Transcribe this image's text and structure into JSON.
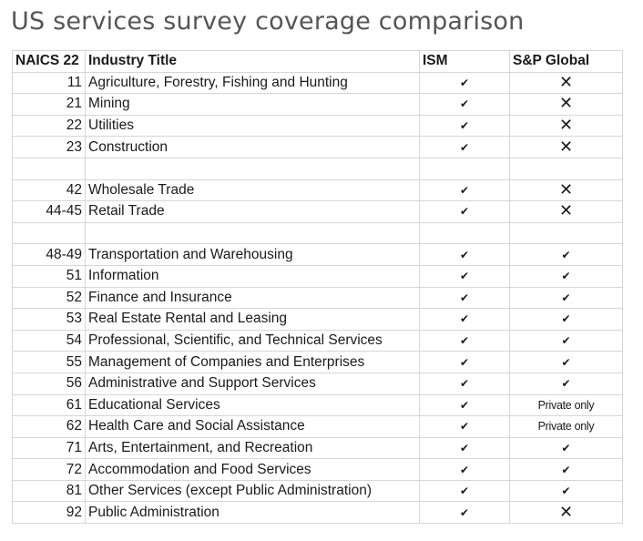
{
  "title": "US services survey coverage comparison",
  "headers": {
    "naics": "NAICS 22",
    "industry": "Industry Title",
    "ism": "ISM",
    "sp": "S&P Global"
  },
  "marks": {
    "check": "✔",
    "cross": "✕"
  },
  "rows": [
    {
      "code": "11",
      "title": "Agriculture, Forestry, Fishing and Hunting",
      "ism": "check",
      "sp": "cross"
    },
    {
      "code": "21",
      "title": "Mining",
      "ism": "check",
      "sp": "cross"
    },
    {
      "code": "22",
      "title": "Utilities",
      "ism": "check",
      "sp": "cross"
    },
    {
      "code": "23",
      "title": "Construction",
      "ism": "check",
      "sp": "cross"
    },
    {
      "code": "",
      "title": "",
      "ism": "",
      "sp": ""
    },
    {
      "code": "42",
      "title": "Wholesale Trade",
      "ism": "check",
      "sp": "cross"
    },
    {
      "code": "44-45",
      "title": "Retail Trade",
      "ism": "check",
      "sp": "cross"
    },
    {
      "code": "",
      "title": "",
      "ism": "",
      "sp": ""
    },
    {
      "code": "48-49",
      "title": "Transportation and Warehousing",
      "ism": "check",
      "sp": "check"
    },
    {
      "code": "51",
      "title": "Information",
      "ism": "check",
      "sp": "check"
    },
    {
      "code": "52",
      "title": "Finance and Insurance",
      "ism": "check",
      "sp": "check"
    },
    {
      "code": "53",
      "title": "Real Estate Rental and Leasing",
      "ism": "check",
      "sp": "check"
    },
    {
      "code": "54",
      "title": "Professional, Scientific, and Technical Services",
      "ism": "check",
      "sp": "check"
    },
    {
      "code": "55",
      "title": "Management of Companies and Enterprises",
      "ism": "check",
      "sp": "check"
    },
    {
      "code": "56",
      "title": "Administrative and Support Services",
      "ism": "check",
      "sp": "check"
    },
    {
      "code": "61",
      "title": "Educational Services",
      "ism": "check",
      "sp": "Private only"
    },
    {
      "code": "62",
      "title": "Health Care and Social Assistance",
      "ism": "check",
      "sp": "Private only"
    },
    {
      "code": "71",
      "title": "Arts, Entertainment, and Recreation",
      "ism": "check",
      "sp": "check"
    },
    {
      "code": "72",
      "title": "Accommodation and Food Services",
      "ism": "check",
      "sp": "check"
    },
    {
      "code": "81",
      "title": "Other Services (except Public Administration)",
      "ism": "check",
      "sp": "check"
    },
    {
      "code": "92",
      "title": "Public Administration",
      "ism": "check",
      "sp": "cross"
    }
  ]
}
